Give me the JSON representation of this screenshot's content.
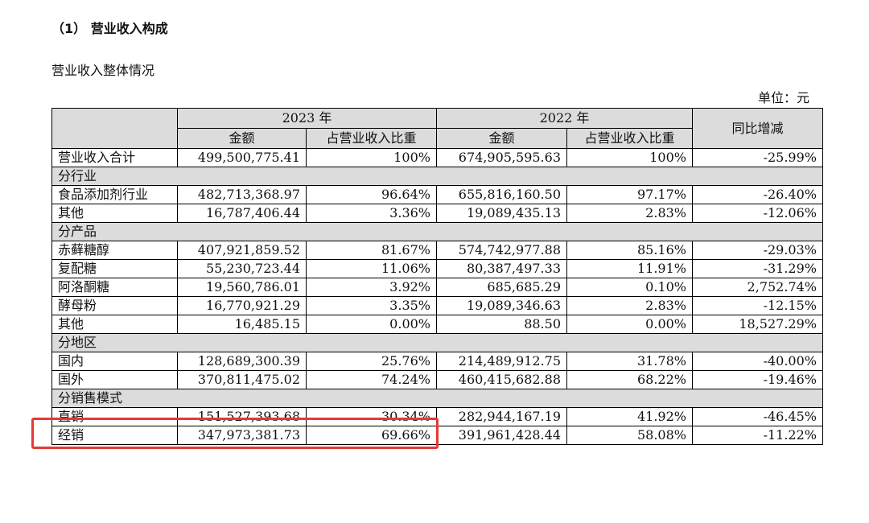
{
  "heading": "（1） 营业收入构成",
  "subheading": "营业收入整体情况",
  "unit": "单位：元",
  "table": {
    "header": {
      "year_2023": "2023 年",
      "year_2022": "2022 年",
      "yoy": "同比增减",
      "amount": "金额",
      "ratio": "占营业收入比重"
    },
    "total": {
      "label": "营业收入合计",
      "amt_2023": "499,500,775.41",
      "pct_2023": "100%",
      "amt_2022": "674,905,595.63",
      "pct_2022": "100%",
      "yoy": "-25.99%"
    },
    "sections": [
      {
        "title": "分行业",
        "rows": [
          {
            "label": "食品添加剂行业",
            "amt_2023": "482,713,368.97",
            "pct_2023": "96.64%",
            "amt_2022": "655,816,160.50",
            "pct_2022": "97.17%",
            "yoy": "-26.40%"
          },
          {
            "label": "其他",
            "amt_2023": "16,787,406.44",
            "pct_2023": "3.36%",
            "amt_2022": "19,089,435.13",
            "pct_2022": "2.83%",
            "yoy": "-12.06%"
          }
        ]
      },
      {
        "title": "分产品",
        "rows": [
          {
            "label": "赤藓糖醇",
            "amt_2023": "407,921,859.52",
            "pct_2023": "81.67%",
            "amt_2022": "574,742,977.88",
            "pct_2022": "85.16%",
            "yoy": "-29.03%"
          },
          {
            "label": "复配糖",
            "amt_2023": "55,230,723.44",
            "pct_2023": "11.06%",
            "amt_2022": "80,387,497.33",
            "pct_2022": "11.91%",
            "yoy": "-31.29%"
          },
          {
            "label": "阿洛酮糖",
            "amt_2023": "19,560,786.01",
            "pct_2023": "3.92%",
            "amt_2022": "685,685.29",
            "pct_2022": "0.10%",
            "yoy": "2,752.74%"
          },
          {
            "label": "酵母粉",
            "amt_2023": "16,770,921.29",
            "pct_2023": "3.35%",
            "amt_2022": "19,089,346.63",
            "pct_2022": "2.83%",
            "yoy": "-12.15%"
          },
          {
            "label": "其他",
            "amt_2023": "16,485.15",
            "pct_2023": "0.00%",
            "amt_2022": "88.50",
            "pct_2022": "0.00%",
            "yoy": "18,527.29%"
          }
        ]
      },
      {
        "title": "分地区",
        "rows": [
          {
            "label": "国内",
            "amt_2023": "128,689,300.39",
            "pct_2023": "25.76%",
            "amt_2022": "214,489,912.75",
            "pct_2022": "31.78%",
            "yoy": "-40.00%"
          },
          {
            "label": "国外",
            "amt_2023": "370,811,475.02",
            "pct_2023": "74.24%",
            "amt_2022": "460,415,682.88",
            "pct_2022": "68.22%",
            "yoy": "-19.46%"
          }
        ]
      },
      {
        "title": "分销售模式",
        "rows": [
          {
            "label": "直销",
            "amt_2023": "151,527,393.68",
            "pct_2023": "30.34%",
            "amt_2022": "282,944,167.19",
            "pct_2022": "41.92%",
            "yoy": "-46.45%"
          },
          {
            "label": "经销",
            "amt_2023": "347,973,381.73",
            "pct_2023": "69.66%",
            "amt_2022": "391,961,428.44",
            "pct_2022": "58.08%",
            "yoy": "-11.22%"
          }
        ]
      }
    ]
  },
  "highlight_color": "#e53935",
  "section_bg": "#dcdcdc"
}
